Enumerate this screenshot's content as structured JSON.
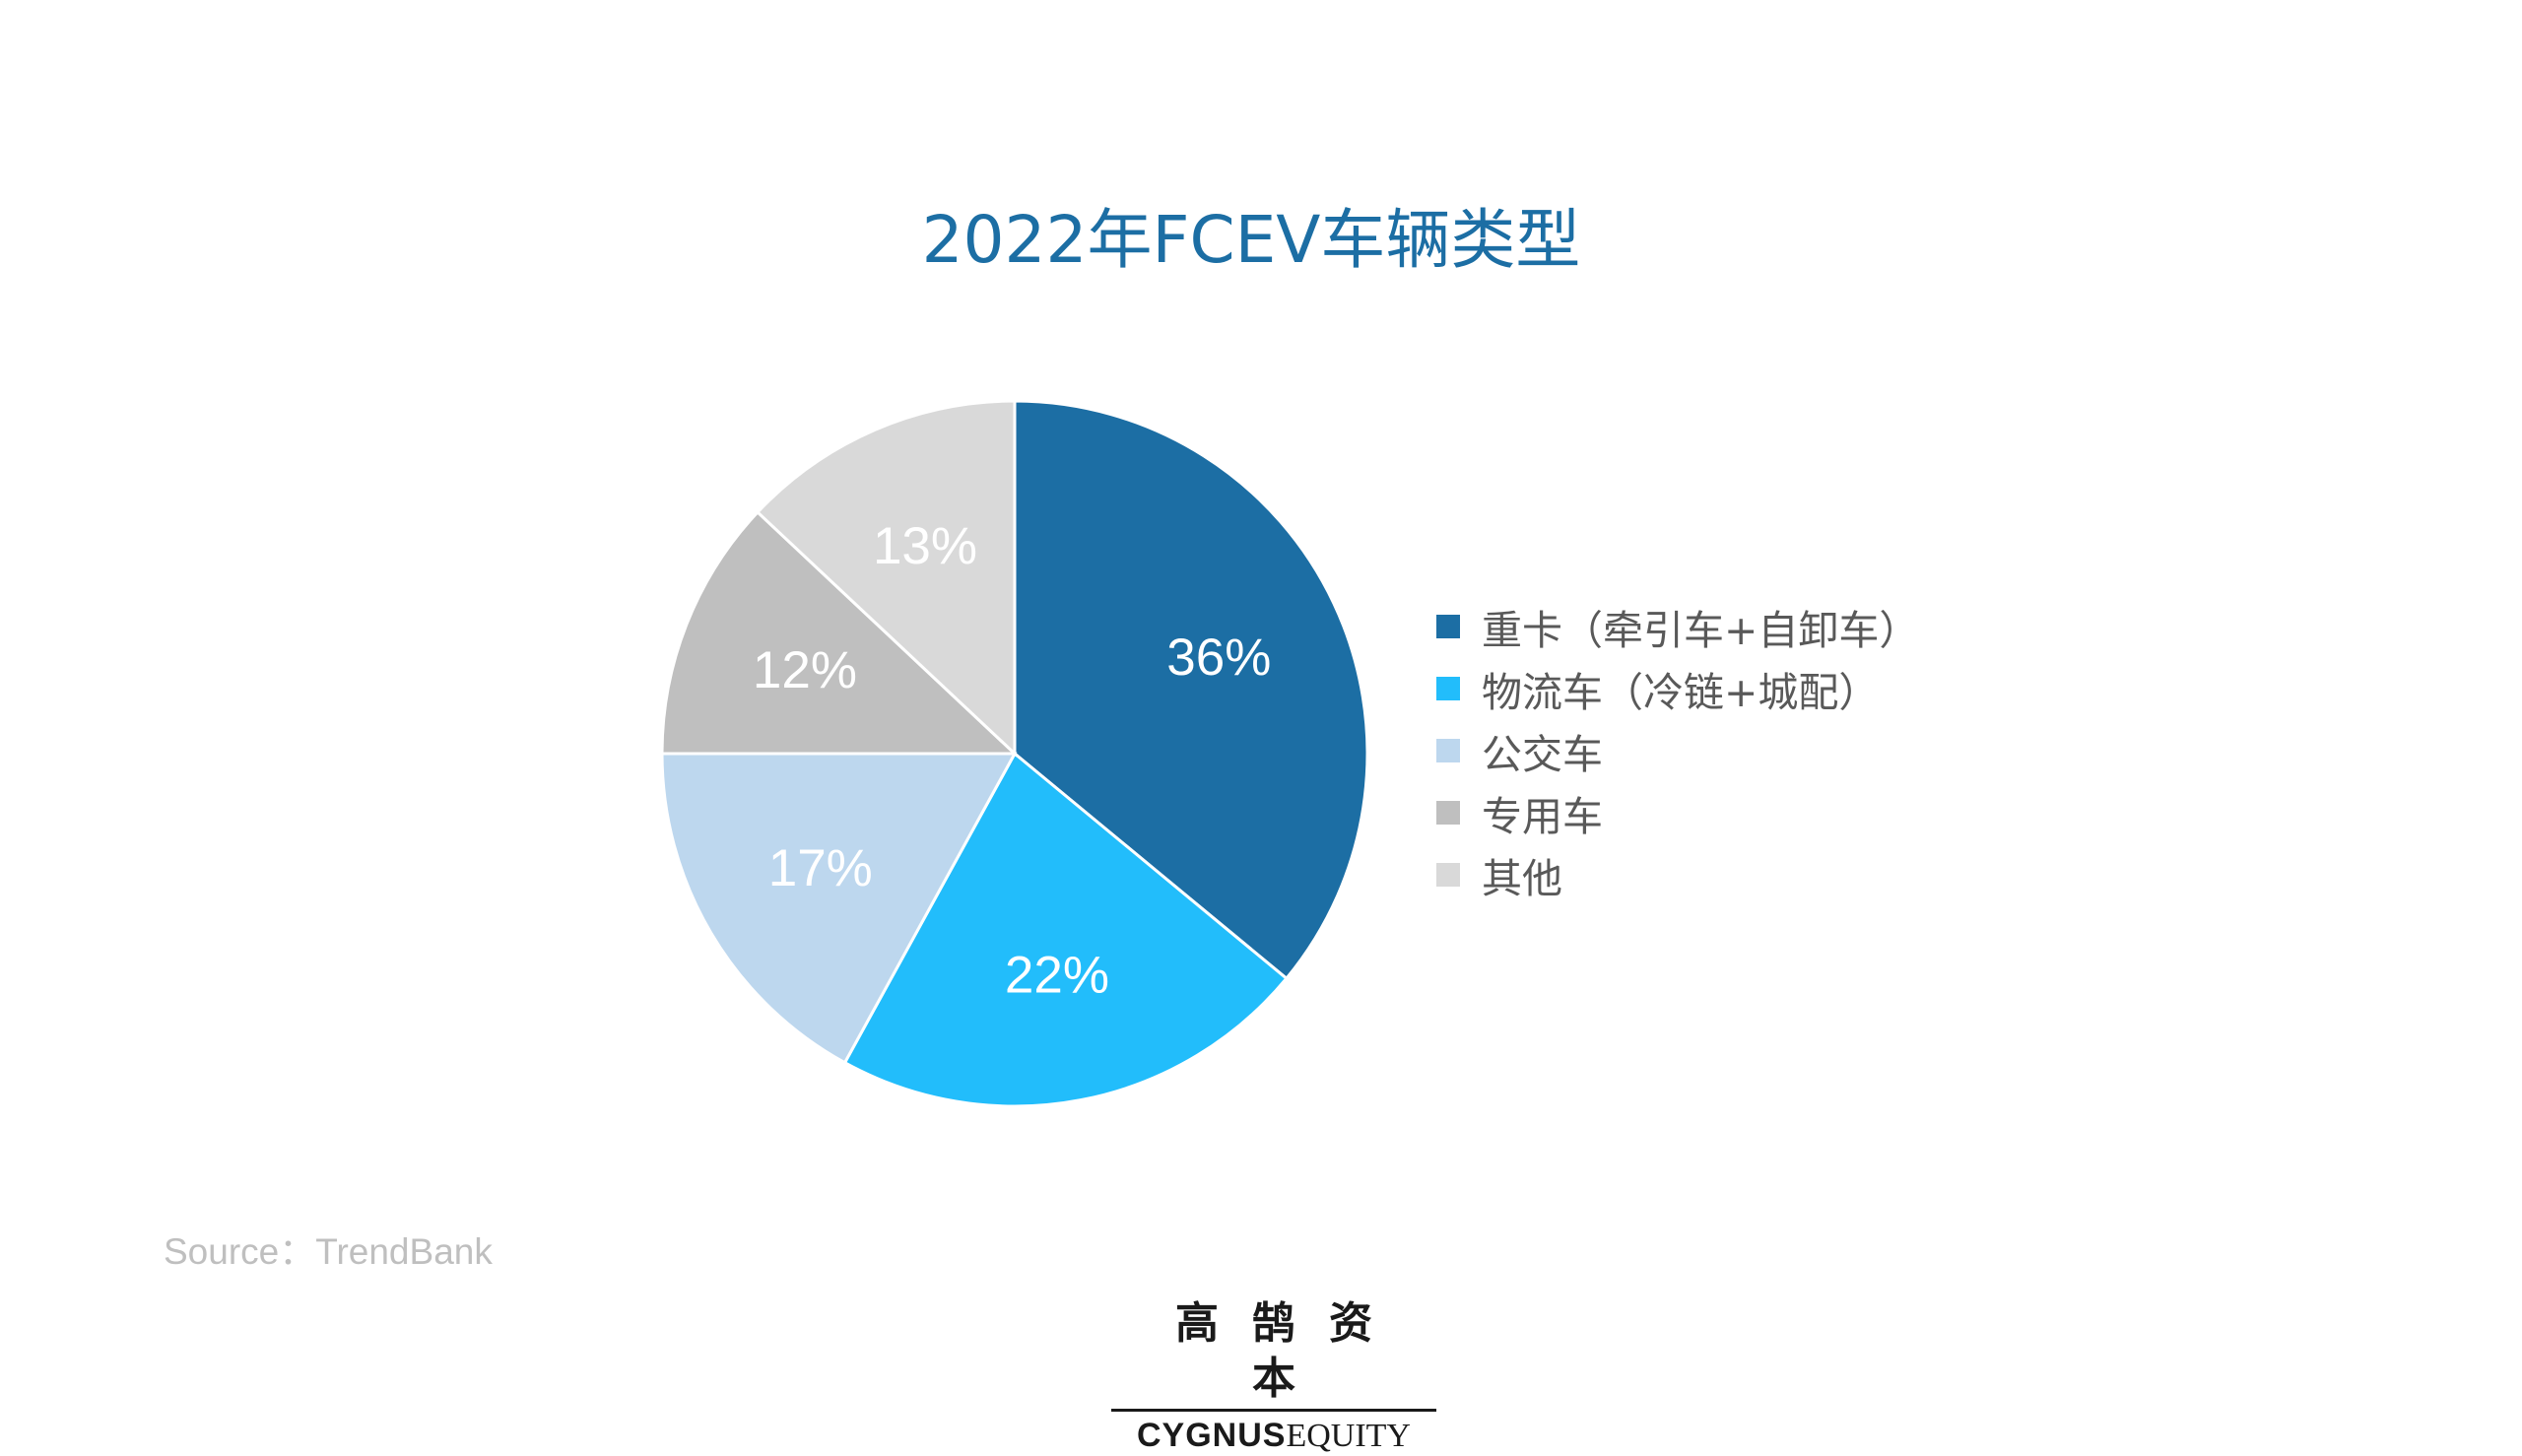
{
  "chart_data": {
    "type": "pie",
    "title": "2022年FCEV车辆类型",
    "legend_position": "right",
    "slices": [
      {
        "label": "重卡（牵引车+自卸车）",
        "value": 36,
        "display": "36%",
        "color": "#1c6ea4"
      },
      {
        "label": "物流车（冷链+城配）",
        "value": 22,
        "display": "22%",
        "color": "#22bdfb"
      },
      {
        "label": "公交车",
        "value": 17,
        "display": "17%",
        "color": "#bdd7ee"
      },
      {
        "label": "专用车",
        "value": 12,
        "display": "12%",
        "color": "#bfbfbf"
      },
      {
        "label": "其他",
        "value": 13,
        "display": "13%",
        "color": "#d9d9d9"
      }
    ]
  },
  "source_text": "Source：TrendBank",
  "logo": {
    "chinese": "高鹄资本",
    "english_bold": "CYGNUS",
    "english_regular": "EQUITY"
  }
}
